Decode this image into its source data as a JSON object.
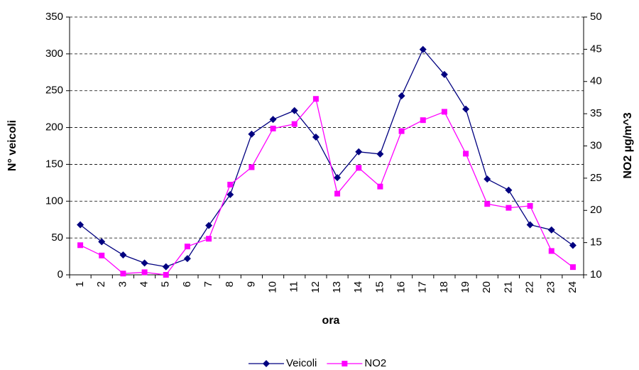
{
  "chart_data": {
    "type": "line",
    "x_label": "ora",
    "y_label": "N° veicoli",
    "y2_label": "NO2 µg/m^3",
    "categories": [
      "1",
      "2",
      "3",
      "4",
      "5",
      "6",
      "7",
      "8",
      "9",
      "10",
      "11",
      "12",
      "13",
      "14",
      "15",
      "16",
      "17",
      "18",
      "19",
      "20",
      "21",
      "22",
      "23",
      "24"
    ],
    "series": [
      {
        "name": "Veicoli",
        "color": "#000080",
        "marker": "diamond",
        "values": [
          68,
          45,
          27,
          16,
          11,
          22,
          67,
          109,
          191,
          211,
          223,
          187,
          132,
          167,
          164,
          243,
          306,
          272,
          225,
          130,
          115,
          68,
          61,
          40
        ]
      },
      {
        "name": "NO2",
        "color": "#ff00ff",
        "marker": "square",
        "axis": "y2",
        "values": [
          14.6,
          13.0,
          10.2,
          10.4,
          10.0,
          14.4,
          15.6,
          24.0,
          26.7,
          32.7,
          33.4,
          37.3,
          22.6,
          26.6,
          23.7,
          32.3,
          34.0,
          35.3,
          28.8,
          21.0,
          20.4,
          20.7,
          13.7,
          11.2
        ]
      }
    ],
    "ylim": [
      0,
      350
    ],
    "yticks": [
      0,
      50,
      100,
      150,
      200,
      250,
      300,
      350
    ],
    "y2lim": [
      10,
      50
    ],
    "y2ticks": [
      10,
      15,
      20,
      25,
      30,
      35,
      40,
      45,
      50
    ],
    "grid": true,
    "legend": "bottom"
  }
}
